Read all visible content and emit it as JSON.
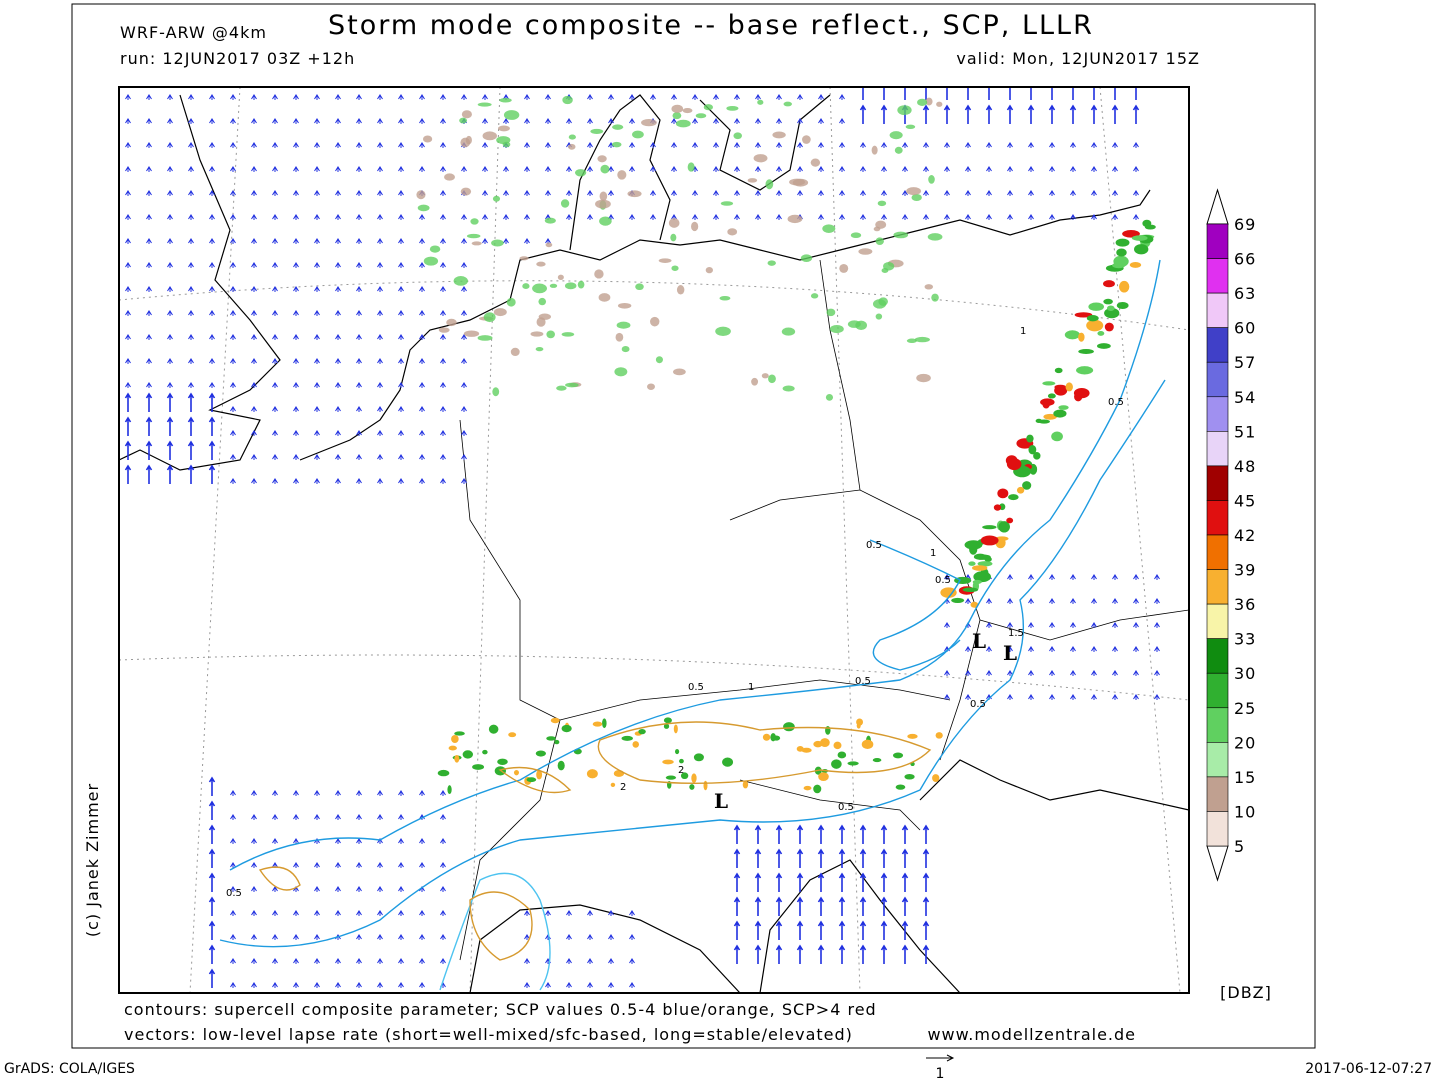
{
  "header": {
    "model": "WRF-ARW @4km",
    "title": "Storm mode composite -- base reflect., SCP, LLLR",
    "run": "run: 12JUN2017 03Z +12h",
    "valid": "valid: Mon, 12JUN2017 15Z"
  },
  "colorbar": {
    "levels": [
      69,
      66,
      63,
      60,
      57,
      54,
      51,
      48,
      45,
      42,
      39,
      36,
      33,
      30,
      25,
      20,
      15,
      10,
      5
    ],
    "colors": [
      "#a000c0",
      "#e030f0",
      "#f0c8f8",
      "#4040c8",
      "#6a6ae0",
      "#a090f0",
      "#e8d4f8",
      "#a00000",
      "#e01010",
      "#f07000",
      "#f8b030",
      "#f8f4a8",
      "#108c10",
      "#30b030",
      "#60d060",
      "#a8eca8",
      "#c0a090",
      "#f2e2da"
    ],
    "unit": "[DBZ]"
  },
  "map_labels": {
    "lows": [
      "L",
      "L",
      "L"
    ],
    "contours": [
      "0.5",
      "1",
      "0.5",
      "0.5",
      "1",
      "2",
      "2",
      "0.5",
      "0.5",
      "1",
      "0.5",
      "0.5",
      "1.5",
      "0.5"
    ]
  },
  "footer": {
    "contours": "contours: supercell composite parameter; SCP values 0.5-4 blue/orange, SCP>4 red",
    "vectors": "vectors: low-level lapse rate (short=well-mixed/sfc-based, long=stable/elevated)",
    "site": "www.modellzentrale.de",
    "credit": "(c) Janek Zimmer",
    "software": "GrADS: COLA/IGES",
    "timestamp": "2017-06-12-07:27",
    "vector_scale": "1"
  }
}
